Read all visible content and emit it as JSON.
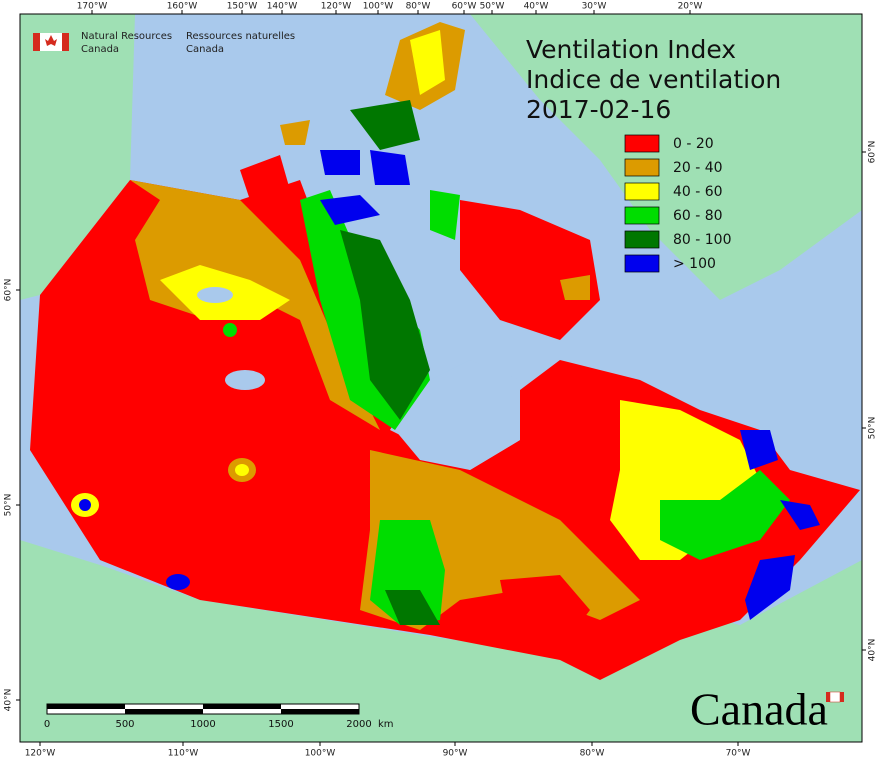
{
  "header": {
    "agency_en": [
      "Natural Resources",
      "Canada"
    ],
    "agency_fr": [
      "Ressources naturelles",
      "Canada"
    ]
  },
  "title": [
    "Ventilation Index",
    "Indice de ventilation"
  ],
  "date": "2017-02-16",
  "legend": [
    {
      "label": "0 - 20",
      "color": "#ff0000"
    },
    {
      "label": "20 - 40",
      "color": "#dc9b00"
    },
    {
      "label": "40 - 60",
      "color": "#ffff00"
    },
    {
      "label": "60 - 80",
      "color": "#00dd00"
    },
    {
      "label": "80 - 100",
      "color": "#007700"
    },
    {
      "label": "> 100",
      "color": "#0000ee"
    }
  ],
  "top_longitudes": [
    "170°W",
    "160°W",
    "150°W",
    "140°W",
    "120°W",
    "100°W",
    "80°W",
    "60°W",
    "50°W",
    "40°W",
    "30°W",
    "20°W"
  ],
  "bottom_longitudes": [
    "120°W",
    "110°W",
    "100°W",
    "90°W",
    "80°W",
    "70°W"
  ],
  "left_latitudes": [
    "60°N",
    "50°N",
    "40°N"
  ],
  "right_latitudes": [
    "60°N",
    "50°N",
    "40°N"
  ],
  "scale_bar": {
    "labels": [
      "0",
      "500",
      "1000",
      "1500",
      "2000"
    ],
    "unit": "km"
  },
  "wordmark": "Canada"
}
